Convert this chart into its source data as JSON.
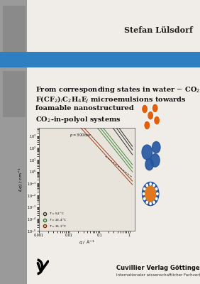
{
  "background_color": "#f0ede8",
  "blue_band_color": "#2d7fc1",
  "gray_sidebar_color": "#9a9a9a",
  "gray_box_color": "#8a8a8a",
  "author": "Stefan Lülsdorf",
  "publisher": "Cuvillier Verlag Göttingen",
  "publisher_sub": "Internationaler wissenschaftlicher Fachverlag",
  "title_fs": 7.0,
  "author_fs": 8.0
}
